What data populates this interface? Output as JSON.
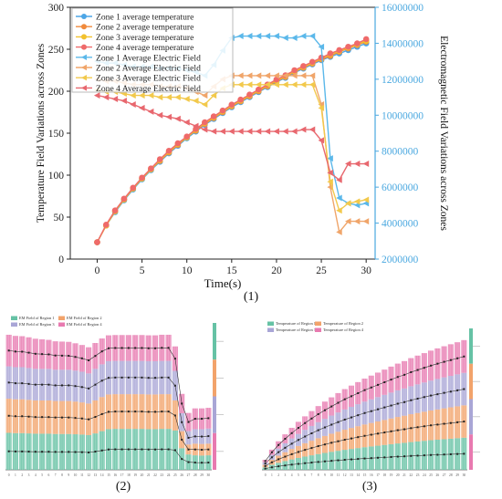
{
  "figure": {
    "captions": [
      "(1)",
      "(2)",
      "(3)"
    ]
  },
  "chart_data": [
    {
      "type": "line",
      "title": "",
      "xlabel": "Time(s)",
      "ylabel": "Temperature Field Variations across Zones",
      "y2label": "Electromagnetic Field Variations across Zones",
      "xlim": [
        -3,
        31
      ],
      "xticks": [
        0,
        5,
        10,
        15,
        20,
        25,
        30
      ],
      "ylim": [
        0,
        300
      ],
      "yticks": [
        0,
        50,
        100,
        150,
        200,
        250,
        300
      ],
      "y2lim": [
        2000000,
        16000000
      ],
      "y2ticks": [
        2000000,
        4000000,
        6000000,
        8000000,
        10000000,
        12000000,
        14000000,
        16000000
      ],
      "x": [
        0,
        1,
        2,
        3,
        4,
        5,
        6,
        7,
        8,
        9,
        10,
        11,
        12,
        13,
        14,
        15,
        16,
        17,
        18,
        19,
        20,
        21,
        22,
        23,
        24,
        25,
        26,
        27,
        28,
        29,
        30
      ],
      "legend_position": "top-left",
      "series": [
        {
          "name": "Zone 1 average temperature",
          "axis": "left",
          "color": "#4da6e6",
          "marker": "circle",
          "values": [
            20,
            40,
            56,
            70,
            83,
            95,
            106,
            116,
            126,
            135,
            144,
            152,
            160,
            167,
            174,
            181,
            187,
            193,
            199,
            205,
            211,
            216,
            222,
            227,
            232,
            237,
            241,
            245,
            249,
            253,
            257
          ]
        },
        {
          "name": "Zone 2 average temperature",
          "axis": "left",
          "color": "#f08a3c",
          "marker": "circle",
          "values": [
            20,
            40,
            57,
            71,
            84,
            96,
            107,
            117,
            127,
            136,
            145,
            153,
            161,
            168,
            175,
            182,
            188,
            194,
            200,
            206,
            212,
            217,
            223,
            228,
            233,
            238,
            242,
            247,
            251,
            255,
            259
          ]
        },
        {
          "name": "Zone 3 average temperature",
          "axis": "left",
          "color": "#f2c12e",
          "marker": "circle",
          "values": [
            20,
            40,
            57,
            71,
            84,
            96,
            107,
            118,
            128,
            137,
            145,
            154,
            162,
            169,
            176,
            183,
            189,
            195,
            201,
            207,
            213,
            218,
            224,
            229,
            234,
            239,
            244,
            248,
            252,
            256,
            260
          ]
        },
        {
          "name": "Zone 4 average temperature",
          "axis": "left",
          "color": "#ef6a6a",
          "marker": "circle",
          "values": [
            20,
            41,
            58,
            72,
            85,
            97,
            108,
            119,
            129,
            138,
            146,
            155,
            163,
            170,
            177,
            184,
            190,
            196,
            202,
            208,
            214,
            219,
            225,
            230,
            235,
            240,
            245,
            249,
            253,
            257,
            262
          ]
        },
        {
          "name": "Zone 1 Average Electric Field",
          "axis": "right",
          "color": "#5bb8ea",
          "marker": "triangle-left",
          "values": [
            13000000,
            12900000,
            12900000,
            12800000,
            12700000,
            12700000,
            12700000,
            12600000,
            12600000,
            12600000,
            12500000,
            12400000,
            12200000,
            12800000,
            13600000,
            14300000,
            14400000,
            14400000,
            14400000,
            14400000,
            14400000,
            14300000,
            14300000,
            14400000,
            14400000,
            13800000,
            7600000,
            5400000,
            5100000,
            5000000,
            5100000
          ]
        },
        {
          "name": "Zone 2 Average Electric Field",
          "axis": "right",
          "color": "#f0a56a",
          "marker": "triangle-left",
          "values": [
            12000000,
            11900000,
            11900000,
            11800000,
            11700000,
            11700000,
            11700000,
            11600000,
            11600000,
            11600000,
            11500000,
            11300000,
            11100000,
            11600000,
            12000000,
            12200000,
            12200000,
            12200000,
            12200000,
            12200000,
            12200000,
            12200000,
            12200000,
            12200000,
            12200000,
            10600000,
            6000000,
            3500000,
            4100000,
            4100000,
            4100000
          ]
        },
        {
          "name": "Zone 3 Average Electric Field",
          "axis": "right",
          "color": "#f2c94c",
          "marker": "triangle-left",
          "values": [
            11400000,
            11300000,
            11300000,
            11200000,
            11100000,
            11100000,
            11100000,
            11000000,
            11000000,
            11000000,
            10900000,
            10800000,
            10600000,
            11100000,
            11500000,
            11700000,
            11700000,
            11700000,
            11700000,
            11700000,
            11700000,
            11700000,
            11700000,
            11700000,
            11700000,
            10400000,
            6300000,
            4700000,
            5100000,
            5200000,
            5300000
          ]
        },
        {
          "name": "Zone 4 Average Electric Field",
          "axis": "right",
          "color": "#e8686f",
          "marker": "triangle-left",
          "values": [
            11100000,
            11000000,
            10900000,
            10800000,
            10600000,
            10400000,
            10200000,
            10000000,
            9900000,
            9800000,
            9600000,
            9400000,
            9200000,
            9100000,
            9100000,
            9100000,
            9100000,
            9100000,
            9100000,
            9100000,
            9100000,
            9100000,
            9100000,
            9200000,
            9200000,
            8600000,
            6800000,
            6400000,
            7300000,
            7300000,
            7300000
          ]
        }
      ]
    },
    {
      "type": "area",
      "title": "",
      "stacked": true,
      "legend_position": "top-left",
      "legend": [
        "EM Field of Region 1",
        "EM Field of Region 2",
        "EM Field of Region 3",
        "EM Field of Region 4"
      ],
      "categories": [
        "0",
        "1",
        "2",
        "3",
        "4",
        "5",
        "6",
        "7",
        "8",
        "9",
        "10",
        "11",
        "12",
        "13",
        "14",
        "15",
        "16",
        "17",
        "18",
        "19",
        "20",
        "21",
        "22",
        "23",
        "24",
        "25",
        "26",
        "27",
        "28",
        "29",
        "30"
      ],
      "series": [
        {
          "name": "EM Field of Region 1",
          "color": "#66c2a5",
          "values": [
            13000000,
            12900000,
            12900000,
            12800000,
            12700000,
            12700000,
            12700000,
            12600000,
            12600000,
            12600000,
            12500000,
            12400000,
            12200000,
            12800000,
            13600000,
            14300000,
            14400000,
            14400000,
            14400000,
            14400000,
            14400000,
            14300000,
            14300000,
            14400000,
            14400000,
            13800000,
            7600000,
            5400000,
            5100000,
            5000000,
            5100000
          ]
        },
        {
          "name": "EM Field of Region 2",
          "color": "#f2a36b",
          "values": [
            12000000,
            11900000,
            11900000,
            11800000,
            11700000,
            11700000,
            11700000,
            11600000,
            11600000,
            11600000,
            11500000,
            11300000,
            11100000,
            11600000,
            12000000,
            12200000,
            12200000,
            12200000,
            12200000,
            12200000,
            12200000,
            12200000,
            12200000,
            12200000,
            12200000,
            10600000,
            6000000,
            3500000,
            4100000,
            4100000,
            4100000
          ]
        },
        {
          "name": "EM Field of Region 3",
          "color": "#a9a6d6",
          "values": [
            11400000,
            11300000,
            11300000,
            11200000,
            11100000,
            11100000,
            11100000,
            11000000,
            11000000,
            11000000,
            10900000,
            10800000,
            10600000,
            11100000,
            11500000,
            11700000,
            11700000,
            11700000,
            11700000,
            11700000,
            11700000,
            11700000,
            11700000,
            11700000,
            11700000,
            10400000,
            6300000,
            4700000,
            5100000,
            5200000,
            5300000
          ]
        },
        {
          "name": "EM Field of Region 4",
          "color": "#e87ab0",
          "values": [
            11100000,
            11000000,
            10900000,
            10800000,
            10600000,
            10400000,
            10200000,
            10000000,
            9900000,
            9800000,
            9600000,
            9400000,
            9200000,
            9100000,
            9100000,
            9100000,
            9100000,
            9100000,
            9100000,
            9100000,
            9100000,
            9100000,
            9100000,
            9200000,
            9200000,
            8600000,
            6800000,
            6400000,
            7300000,
            7300000,
            7300000
          ]
        }
      ]
    },
    {
      "type": "area",
      "title": "",
      "stacked": true,
      "legend_position": "top-left",
      "legend": [
        "Temperature of Region 1",
        "Temperature of Region 2",
        "Temperature of Region 3",
        "Temperature of Region 4"
      ],
      "categories": [
        "0",
        "1",
        "2",
        "3",
        "4",
        "5",
        "6",
        "7",
        "8",
        "9",
        "10",
        "11",
        "12",
        "13",
        "14",
        "15",
        "16",
        "17",
        "18",
        "19",
        "20",
        "21",
        "22",
        "23",
        "24",
        "25",
        "26",
        "27",
        "28",
        "29",
        "30"
      ],
      "series": [
        {
          "name": "Temperature of Region 1",
          "color": "#66c2a5",
          "values": [
            20,
            40,
            56,
            70,
            83,
            95,
            106,
            116,
            126,
            135,
            144,
            152,
            160,
            167,
            174,
            181,
            187,
            193,
            199,
            205,
            211,
            216,
            222,
            227,
            232,
            237,
            241,
            245,
            249,
            253,
            257
          ]
        },
        {
          "name": "Temperature of Region 2",
          "color": "#f2a36b",
          "values": [
            20,
            40,
            57,
            71,
            84,
            96,
            107,
            117,
            127,
            136,
            145,
            153,
            161,
            168,
            175,
            182,
            188,
            194,
            200,
            206,
            212,
            217,
            223,
            228,
            233,
            238,
            242,
            247,
            251,
            255,
            259
          ]
        },
        {
          "name": "Temperature of Region 3",
          "color": "#a9a6d6",
          "values": [
            20,
            40,
            57,
            71,
            84,
            96,
            107,
            118,
            128,
            137,
            145,
            154,
            162,
            169,
            176,
            183,
            189,
            195,
            201,
            207,
            213,
            218,
            224,
            229,
            234,
            239,
            244,
            248,
            252,
            256,
            260
          ]
        },
        {
          "name": "Temperature of Region 4",
          "color": "#e87ab0",
          "values": [
            20,
            41,
            58,
            72,
            85,
            97,
            108,
            119,
            129,
            138,
            146,
            155,
            163,
            170,
            177,
            184,
            190,
            196,
            202,
            208,
            214,
            219,
            225,
            230,
            235,
            240,
            245,
            249,
            253,
            257,
            262
          ]
        }
      ]
    }
  ]
}
